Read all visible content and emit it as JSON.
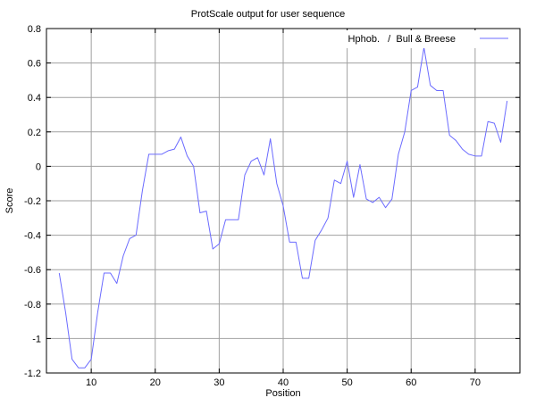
{
  "chart_data": {
    "type": "line",
    "title": "ProtScale output for user sequence",
    "xlabel": "Position",
    "ylabel": "Score",
    "xlim": [
      3,
      77
    ],
    "ylim": [
      -1.2,
      0.8
    ],
    "xticks": [
      10,
      20,
      30,
      40,
      50,
      60,
      70
    ],
    "yticks": [
      -1.2,
      -1,
      -0.8,
      -0.6,
      -0.4,
      -0.2,
      0,
      0.2,
      0.4,
      0.6,
      0.8
    ],
    "grid": true,
    "legend_position": "top-right",
    "series": [
      {
        "name": "Hphob.   /  Bull & Breese",
        "color": "#6b6bff",
        "x": [
          5,
          6,
          7,
          8,
          9,
          10,
          11,
          12,
          13,
          14,
          15,
          16,
          17,
          18,
          19,
          20,
          21,
          22,
          23,
          24,
          25,
          26,
          27,
          28,
          29,
          30,
          31,
          32,
          33,
          34,
          35,
          36,
          37,
          38,
          39,
          40,
          41,
          42,
          43,
          44,
          45,
          46,
          47,
          48,
          49,
          50,
          51,
          52,
          53,
          54,
          55,
          56,
          57,
          58,
          59,
          60,
          61,
          62,
          63,
          64,
          65,
          66,
          67,
          68,
          69,
          70,
          71,
          72,
          73,
          74,
          75
        ],
        "y": [
          -0.62,
          -0.85,
          -1.12,
          -1.17,
          -1.17,
          -1.12,
          -0.85,
          -0.62,
          -0.62,
          -0.68,
          -0.52,
          -0.42,
          -0.4,
          -0.14,
          0.07,
          0.07,
          0.07,
          0.09,
          0.1,
          0.17,
          0.06,
          0.0,
          -0.27,
          -0.26,
          -0.48,
          -0.45,
          -0.31,
          -0.31,
          -0.31,
          -0.05,
          0.03,
          0.05,
          -0.05,
          0.16,
          -0.1,
          -0.23,
          -0.44,
          -0.44,
          -0.65,
          -0.65,
          -0.43,
          -0.37,
          -0.3,
          -0.08,
          -0.1,
          0.03,
          -0.18,
          0.01,
          -0.19,
          -0.21,
          -0.18,
          -0.24,
          -0.19,
          0.07,
          0.2,
          0.44,
          0.46,
          0.69,
          0.47,
          0.44,
          0.44,
          0.18,
          0.15,
          0.1,
          0.07,
          0.06,
          0.06,
          0.26,
          0.25,
          0.14,
          0.38
        ]
      }
    ]
  }
}
